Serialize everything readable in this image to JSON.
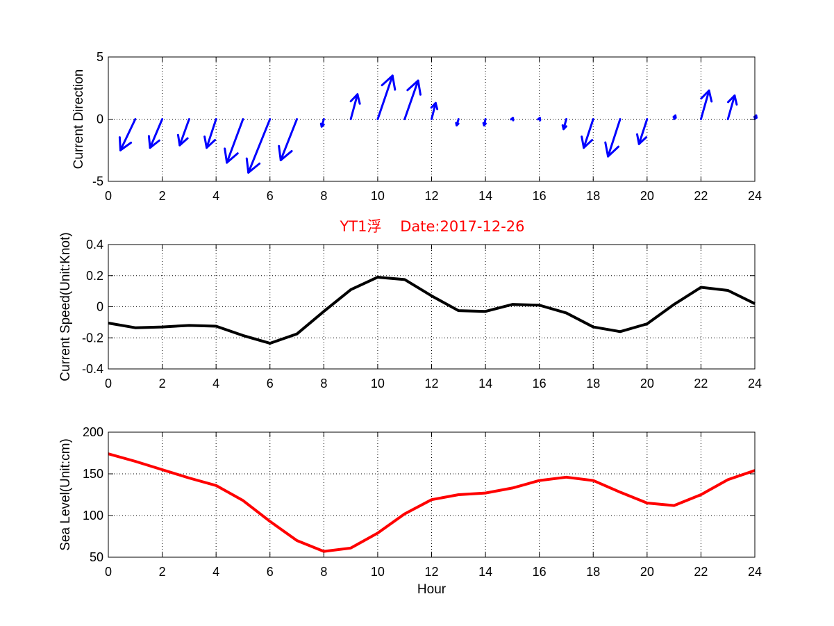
{
  "chart_data": [
    {
      "type": "quiver",
      "ylabel": "Current Direction",
      "xlim": [
        0,
        24
      ],
      "ylim": [
        -5,
        5
      ],
      "xticks": [
        0,
        2,
        4,
        6,
        8,
        10,
        12,
        14,
        16,
        18,
        20,
        22,
        24
      ],
      "yticks": [
        -5,
        0,
        5
      ],
      "grid": true,
      "color": "#0000ff",
      "x": [
        1,
        2,
        3,
        4,
        5,
        6,
        7,
        8,
        9,
        10,
        11,
        12,
        13,
        14,
        15,
        16,
        17,
        18,
        19,
        20,
        21,
        22,
        23,
        24
      ],
      "u": [
        -0.55,
        -0.45,
        -0.35,
        -0.35,
        -0.6,
        -0.8,
        -0.6,
        -0.08,
        0.25,
        0.55,
        0.5,
        0.15,
        -0.07,
        -0.05,
        0.02,
        0.02,
        -0.1,
        -0.35,
        -0.45,
        -0.3,
        0.05,
        0.3,
        0.25,
        0.05
      ],
      "v": [
        -2.5,
        -2.3,
        -2.1,
        -2.3,
        -3.5,
        -4.3,
        -3.3,
        -0.6,
        2.0,
        3.5,
        3.1,
        1.3,
        -0.5,
        -0.5,
        0.1,
        0.1,
        -0.8,
        -2.3,
        -3.0,
        -2.0,
        0.3,
        2.3,
        1.9,
        0.3
      ]
    },
    {
      "type": "line",
      "title": "YT1浮    Date:2017-12-26",
      "ylabel": "Current Speed(Unit:Knot)",
      "xlim": [
        0,
        24
      ],
      "ylim": [
        -0.4,
        0.4
      ],
      "xticks": [
        0,
        2,
        4,
        6,
        8,
        10,
        12,
        14,
        16,
        18,
        20,
        22,
        24
      ],
      "yticks": [
        -0.4,
        -0.2,
        0,
        0.2,
        0.4
      ],
      "ytick_labels": [
        "-0.4",
        "-0.2",
        "0",
        "0.2",
        "0.4"
      ],
      "grid": true,
      "color": "#000000",
      "series": [
        {
          "x": [
            0,
            1,
            2,
            3,
            4,
            5,
            6,
            7,
            8,
            9,
            10,
            11,
            12,
            13,
            14,
            15,
            16,
            17,
            18,
            19,
            20,
            21,
            22,
            23,
            24
          ],
          "values": [
            -0.105,
            -0.135,
            -0.13,
            -0.12,
            -0.125,
            -0.185,
            -0.235,
            -0.175,
            -0.03,
            0.11,
            0.19,
            0.175,
            0.07,
            -0.025,
            -0.03,
            0.015,
            0.01,
            -0.04,
            -0.13,
            -0.16,
            -0.11,
            0.015,
            0.125,
            0.105,
            0.02
          ]
        }
      ]
    },
    {
      "type": "line",
      "xlabel": "Hour",
      "ylabel": "Sea Level(Unit:cm)",
      "xlim": [
        0,
        24
      ],
      "ylim": [
        50,
        200
      ],
      "xticks": [
        0,
        2,
        4,
        6,
        8,
        10,
        12,
        14,
        16,
        18,
        20,
        22,
        24
      ],
      "yticks": [
        50,
        100,
        150,
        200
      ],
      "grid": true,
      "color": "#ff0000",
      "series": [
        {
          "x": [
            0,
            1,
            2,
            3,
            4,
            5,
            6,
            7,
            8,
            9,
            10,
            11,
            12,
            13,
            14,
            15,
            16,
            17,
            18,
            19,
            20,
            21,
            22,
            23,
            24
          ],
          "values": [
            174,
            165,
            155,
            145,
            136,
            118,
            93,
            70,
            57,
            61,
            79,
            102,
            119,
            125,
            127,
            133,
            142,
            146,
            142,
            128,
            115,
            112,
            125,
            143,
            154
          ]
        }
      ]
    }
  ]
}
